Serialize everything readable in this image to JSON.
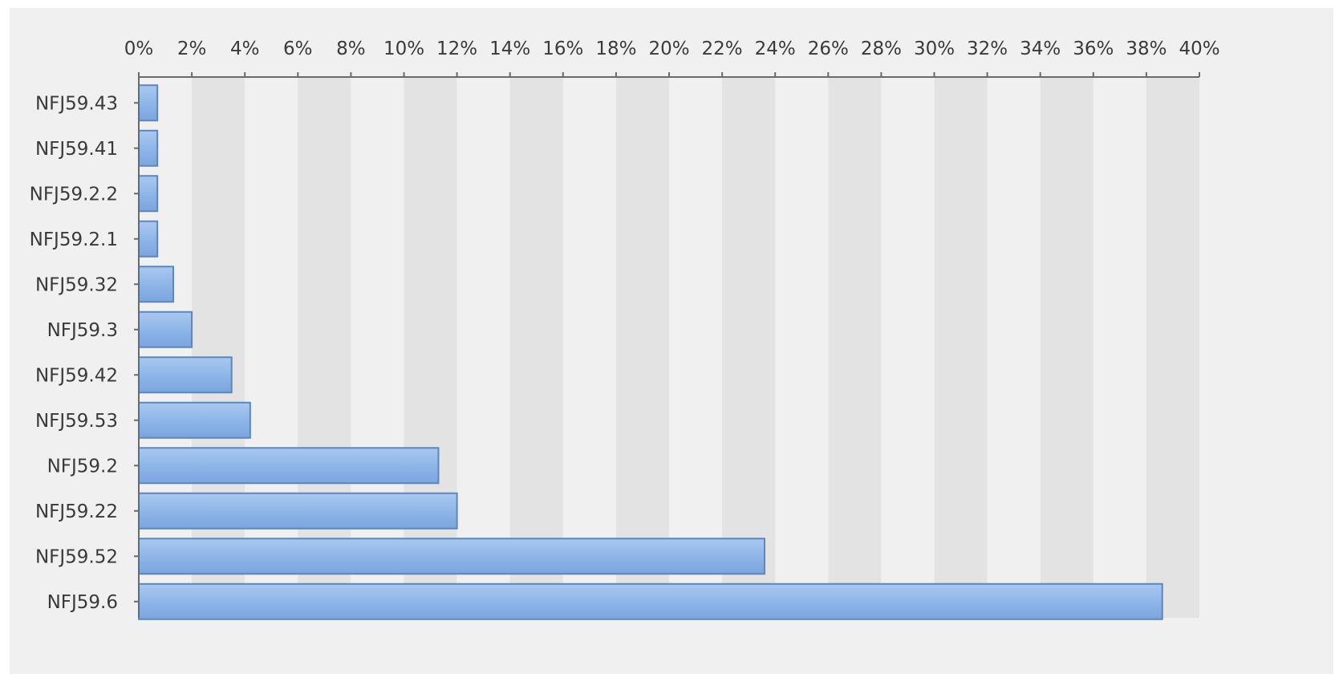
{
  "chart_data": {
    "type": "bar",
    "orientation": "horizontal",
    "title": "",
    "xlabel": "",
    "ylabel": "",
    "categories": [
      "NFJ59.43",
      "NFJ59.41",
      "NFJ59.2.2",
      "NFJ59.2.1",
      "NFJ59.32",
      "NFJ59.3",
      "NFJ59.42",
      "NFJ59.53",
      "NFJ59.2",
      "NFJ59.22",
      "NFJ59.52",
      "NFJ59.6"
    ],
    "series": [
      {
        "values": [
          0.7,
          0.7,
          0.7,
          0.7,
          1.3,
          2.0,
          3.5,
          4.2,
          11.3,
          12.0,
          23.6,
          38.6
        ]
      }
    ],
    "xlim": [
      0,
      40
    ],
    "x_ticks": [
      "0%",
      "2%",
      "4%",
      "6%",
      "8%",
      "10%",
      "12%",
      "14%",
      "16%",
      "18%",
      "20%",
      "22%",
      "24%",
      "26%",
      "28%",
      "30%",
      "32%",
      "34%",
      "36%",
      "38%",
      "40%"
    ],
    "x_axis_position": "top",
    "unit": "%",
    "grid": "alternating vertical bands",
    "legend": "none",
    "colors": {
      "bar_fill": "#8db4e8",
      "bar_fill_light": "#a9c8f0",
      "bar_stroke": "#5b86c0",
      "band_light": "#f0f0f0",
      "band_dark": "#e3e3e3",
      "axis": "#6a6a6a"
    }
  }
}
